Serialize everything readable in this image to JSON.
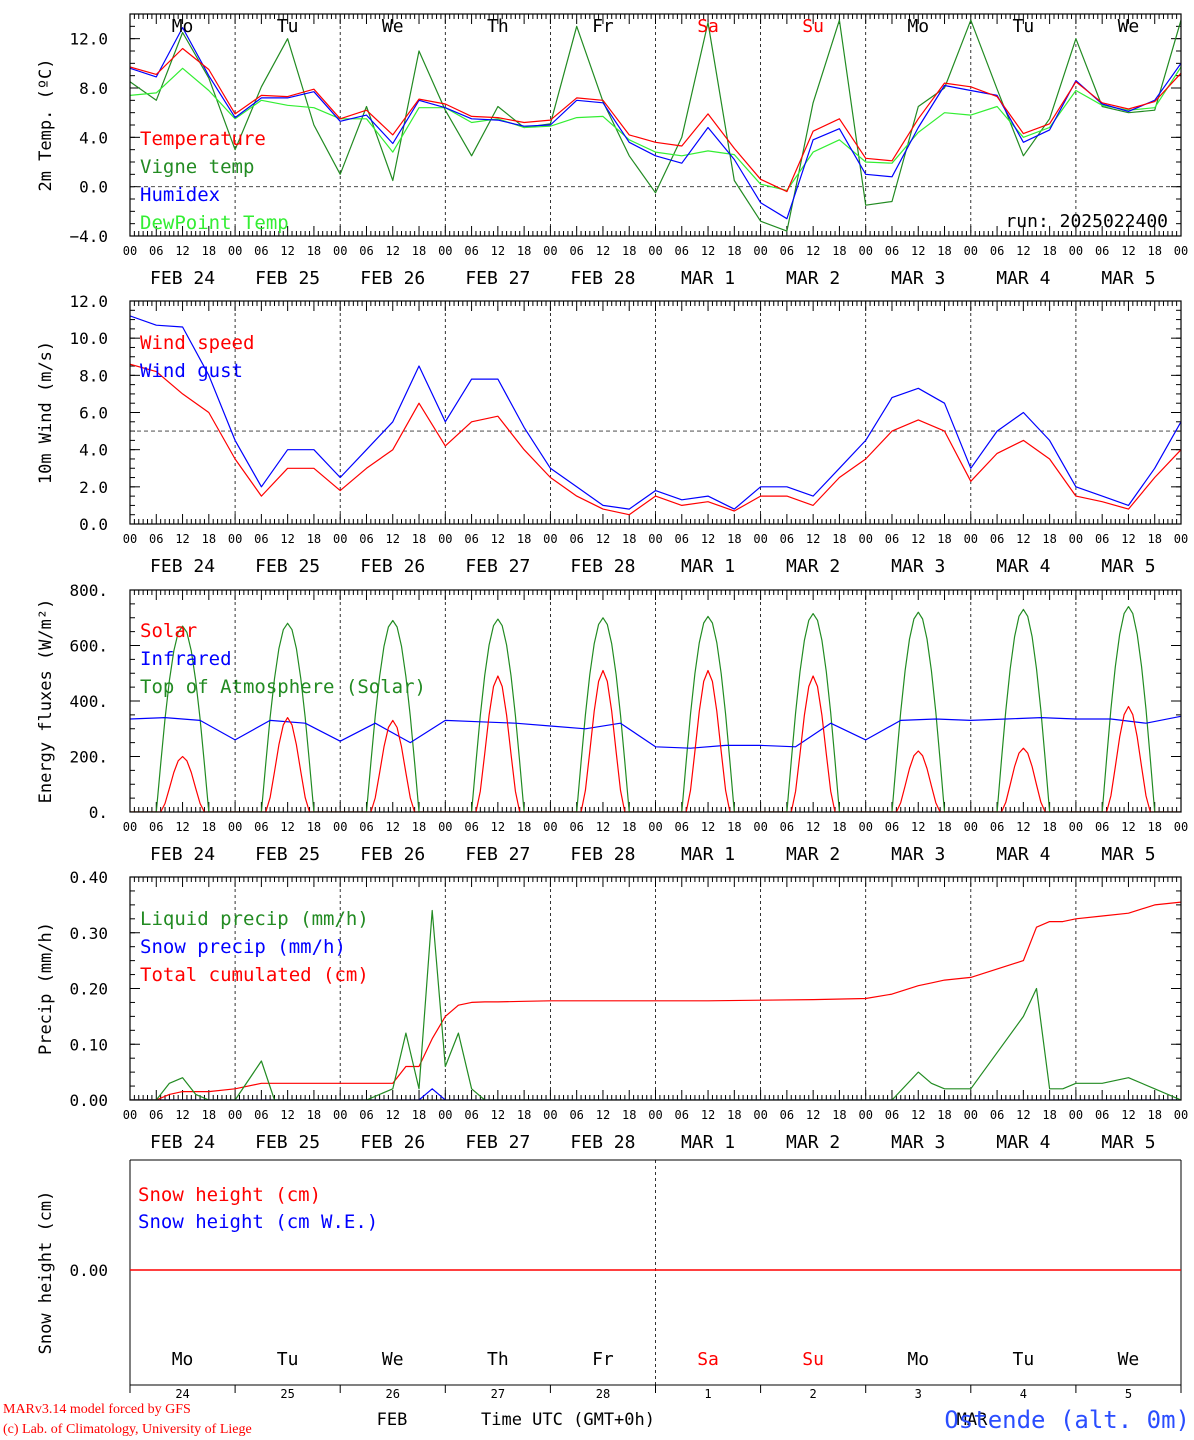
{
  "colors": {
    "red": "#ff0000",
    "dkgreen": "#228b22",
    "blue": "#0000ff",
    "ltgreen": "#33ee33",
    "footer_blue": "#2a4dff"
  },
  "hour_labels": [
    "00",
    "06",
    "12",
    "18"
  ],
  "final_hour_label": "00",
  "date_labels": [
    "FEB 24",
    "FEB 25",
    "FEB 26",
    "FEB 27",
    "FEB 28",
    "MAR  1",
    "MAR  2",
    "MAR  3",
    "MAR  4",
    "MAR  5"
  ],
  "weekdays": [
    {
      "label": "Mo",
      "weekend": false
    },
    {
      "label": "Tu",
      "weekend": false
    },
    {
      "label": "We",
      "weekend": false
    },
    {
      "label": "Th",
      "weekend": false
    },
    {
      "label": "Fr",
      "weekend": false
    },
    {
      "label": "Sa",
      "weekend": true
    },
    {
      "label": "Su",
      "weekend": true
    },
    {
      "label": "Mo",
      "weekend": false
    },
    {
      "label": "Tu",
      "weekend": false
    },
    {
      "label": "We",
      "weekend": false
    }
  ],
  "run_label": "run: 2025022400",
  "footer": {
    "model_line1": "MARv3.14 model forced by GFS",
    "model_line2": "(c) Lab. of Climatology, University of Liege",
    "month_feb": "FEB",
    "month_mar": "MAR",
    "time_axis": "Time UTC (GMT+0h)",
    "station": "Ostende (alt. 0m)",
    "day_numbers": [
      "24",
      "25",
      "26",
      "27",
      "28",
      "1",
      "2",
      "3",
      "4",
      "5"
    ]
  },
  "chart_data": [
    {
      "id": "temp",
      "type": "line",
      "ylabel": "2m Temp. (ºC)",
      "ylim": [
        -4,
        14
      ],
      "yticks": [
        -4,
        0,
        4,
        8,
        12
      ],
      "ytick_labels": [
        "−4.0",
        "0.0",
        "4.0",
        "8.0",
        "12.0"
      ],
      "reference_line": 0,
      "x_hours": [
        0,
        6,
        12,
        18,
        24,
        30,
        36,
        42,
        48,
        54,
        60,
        66,
        72,
        78,
        84,
        90,
        96,
        102,
        108,
        114,
        120,
        126,
        132,
        138,
        144,
        150,
        156,
        162,
        168,
        174,
        180,
        186,
        192,
        198,
        204,
        210,
        216,
        222,
        228,
        234,
        240
      ],
      "series": [
        {
          "name": "Temperature",
          "color": "#ff0000",
          "values": [
            9.7,
            9.1,
            11.2,
            9.5,
            5.9,
            7.4,
            7.3,
            7.9,
            5.5,
            6.2,
            4.2,
            7.1,
            6.7,
            5.7,
            5.6,
            5.2,
            5.4,
            7.2,
            7.0,
            4.2,
            3.6,
            3.3,
            5.9,
            3.1,
            0.6,
            -0.4,
            4.5,
            5.5,
            2.3,
            2.1,
            5.5,
            8.4,
            8.1,
            7.3,
            4.3,
            5.1,
            8.5,
            6.8,
            6.3,
            6.9,
            9.2
          ]
        },
        {
          "name": "Vigne temp",
          "color": "#228b22",
          "values": [
            8.5,
            7.0,
            12.5,
            8.8,
            3.0,
            8.1,
            12.0,
            5.0,
            1.0,
            6.5,
            0.5,
            11.0,
            6.2,
            2.5,
            6.5,
            4.8,
            5.1,
            13.0,
            6.9,
            2.5,
            -0.5,
            4.0,
            13.3,
            0.5,
            -2.8,
            -3.6,
            6.8,
            13.5,
            -1.5,
            -1.2,
            6.5,
            8.0,
            13.5,
            7.9,
            2.5,
            5.5,
            12.0,
            6.5,
            6.0,
            6.2,
            13.5
          ]
        },
        {
          "name": "Humidex",
          "color": "#0000ff",
          "values": [
            9.6,
            8.9,
            12.9,
            9.0,
            5.6,
            7.2,
            7.2,
            7.7,
            5.3,
            5.8,
            3.5,
            7.0,
            6.4,
            5.5,
            5.4,
            4.9,
            5.0,
            7.0,
            6.8,
            3.6,
            2.5,
            1.9,
            4.8,
            2.2,
            -1.3,
            -2.6,
            3.8,
            4.7,
            1.0,
            0.8,
            4.8,
            8.2,
            7.8,
            7.4,
            3.6,
            4.6,
            8.6,
            6.7,
            6.1,
            7.0,
            10.0
          ]
        },
        {
          "name": "DewPoint Temp",
          "color": "#33ee33",
          "values": [
            7.4,
            7.6,
            9.6,
            7.8,
            5.5,
            7.0,
            6.6,
            6.4,
            5.5,
            5.5,
            2.8,
            6.4,
            6.4,
            5.2,
            5.5,
            4.8,
            4.9,
            5.6,
            5.7,
            3.8,
            2.8,
            2.5,
            2.9,
            2.6,
            0.2,
            -0.3,
            2.8,
            3.8,
            2.0,
            1.9,
            4.4,
            6.0,
            5.8,
            6.5,
            4.0,
            4.8,
            7.8,
            6.6,
            6.2,
            6.4,
            9.7
          ]
        }
      ]
    },
    {
      "id": "wind",
      "type": "line",
      "ylabel": "10m Wind (m/s)",
      "ylim": [
        0,
        12
      ],
      "yticks": [
        0,
        2,
        4,
        6,
        8,
        10,
        12
      ],
      "ytick_labels": [
        "0.0",
        "2.0",
        "4.0",
        "6.0",
        "8.0",
        "10.0",
        "12.0"
      ],
      "reference_line": 5,
      "x_hours": [
        0,
        6,
        12,
        18,
        24,
        30,
        36,
        42,
        48,
        54,
        60,
        66,
        72,
        78,
        84,
        90,
        96,
        102,
        108,
        114,
        120,
        126,
        132,
        138,
        144,
        150,
        156,
        162,
        168,
        174,
        180,
        186,
        192,
        198,
        204,
        210,
        216,
        222,
        228,
        234,
        240
      ],
      "series": [
        {
          "name": "Wind speed",
          "color": "#ff0000",
          "values": [
            8.6,
            8.2,
            7.0,
            6.0,
            3.5,
            1.5,
            3.0,
            3.0,
            1.8,
            3.0,
            4.0,
            6.5,
            4.2,
            5.5,
            5.8,
            4.0,
            2.5,
            1.5,
            0.8,
            0.5,
            1.5,
            1.0,
            1.2,
            0.7,
            1.5,
            1.5,
            1.0,
            2.5,
            3.5,
            5.0,
            5.6,
            5.0,
            2.3,
            3.8,
            4.5,
            3.5,
            1.5,
            1.2,
            0.8,
            2.5,
            4.0
          ]
        },
        {
          "name": "Wind gust",
          "color": "#0000ff",
          "values": [
            11.2,
            10.7,
            10.6,
            8.0,
            4.5,
            2.0,
            4.0,
            4.0,
            2.5,
            4.0,
            5.5,
            8.5,
            5.5,
            7.8,
            7.8,
            5.2,
            3.0,
            2.0,
            1.0,
            0.8,
            1.8,
            1.3,
            1.5,
            0.8,
            2.0,
            2.0,
            1.5,
            3.0,
            4.5,
            6.8,
            7.3,
            6.5,
            3.0,
            5.0,
            6.0,
            4.5,
            2.0,
            1.5,
            1.0,
            3.0,
            5.5
          ]
        }
      ]
    },
    {
      "id": "energy",
      "type": "line",
      "ylabel": "Energy fluxes (W/m²)",
      "ylim": [
        0,
        800
      ],
      "yticks": [
        0,
        200,
        400,
        600,
        800
      ],
      "ytick_labels": [
        "0.",
        "200.",
        "400.",
        "600.",
        "800."
      ],
      "series": [
        {
          "name": "Solar",
          "color": "#ff0000",
          "daily_peaks": [
            200,
            340,
            330,
            490,
            510,
            510,
            490,
            220,
            230,
            380
          ]
        },
        {
          "name": "Infrared",
          "color": "#0000ff",
          "values": [
            335,
            340,
            330,
            260,
            330,
            320,
            255,
            320,
            250,
            330,
            325,
            320,
            310,
            300,
            320,
            235,
            230,
            240,
            240,
            235,
            320,
            260,
            330,
            335,
            330,
            335,
            340,
            335,
            335,
            320,
            345
          ]
        },
        {
          "name": "Top of Atmosphere (Solar)",
          "color": "#228b22",
          "daily_peaks": [
            670,
            680,
            690,
            695,
            700,
            705,
            715,
            720,
            730,
            740
          ]
        }
      ]
    },
    {
      "id": "precip",
      "type": "line",
      "ylabel": "Precip (mm/h)",
      "ylim": [
        0,
        0.4
      ],
      "yticks": [
        0,
        0.1,
        0.2,
        0.3,
        0.4
      ],
      "ytick_labels": [
        "0.00",
        "0.10",
        "0.20",
        "0.30",
        "0.40"
      ],
      "x_hours": [
        0,
        6,
        9,
        12,
        15,
        18,
        24,
        30,
        33,
        36,
        42,
        48,
        54,
        60,
        63,
        66,
        69,
        72,
        75,
        78,
        81,
        84,
        90,
        96,
        108,
        120,
        132,
        144,
        156,
        168,
        174,
        180,
        183,
        186,
        192,
        204,
        207,
        210,
        213,
        216,
        222,
        228,
        234,
        240
      ],
      "series": [
        {
          "name": "Liquid precip (mm/h)",
          "color": "#228b22",
          "values": [
            0,
            0,
            0.03,
            0.04,
            0.01,
            0,
            0,
            0.07,
            0,
            0,
            0,
            0,
            0,
            0.02,
            0.12,
            0.02,
            0.34,
            0.06,
            0.12,
            0.02,
            0,
            0,
            0,
            0,
            0,
            0,
            0,
            0,
            0,
            0,
            0,
            0.05,
            0.03,
            0.02,
            0.02,
            0.15,
            0.2,
            0.02,
            0.02,
            0.03,
            0.03,
            0.04,
            0.02,
            0
          ]
        },
        {
          "name": "Snow precip (mm/h)",
          "color": "#0000ff",
          "values": [
            0,
            0,
            0,
            0,
            0,
            0,
            0,
            0,
            0,
            0,
            0,
            0,
            0,
            0,
            0,
            0,
            0.02,
            0,
            0,
            0,
            0,
            0,
            0,
            0,
            0,
            0,
            0,
            0,
            0,
            0,
            0,
            0,
            0,
            0,
            0,
            0,
            0,
            0,
            0,
            0,
            0,
            0,
            0,
            0
          ]
        },
        {
          "name": "Total cumulated (cm)",
          "color": "#ff0000",
          "values": [
            0,
            0,
            0.01,
            0.015,
            0.015,
            0.015,
            0.02,
            0.03,
            0.03,
            0.03,
            0.03,
            0.03,
            0.03,
            0.03,
            0.06,
            0.06,
            0.11,
            0.15,
            0.17,
            0.175,
            0.176,
            0.176,
            0.177,
            0.178,
            0.178,
            0.178,
            0.178,
            0.179,
            0.18,
            0.182,
            0.19,
            0.205,
            0.21,
            0.215,
            0.22,
            0.25,
            0.31,
            0.32,
            0.32,
            0.325,
            0.33,
            0.335,
            0.35,
            0.355
          ]
        }
      ]
    },
    {
      "id": "snow",
      "type": "line",
      "ylabel": "Snow height (cm)",
      "ytick_labels": [
        "0.00"
      ],
      "series": [
        {
          "name": "Snow height (cm)",
          "color": "#ff0000",
          "values": [
            0,
            0
          ]
        },
        {
          "name": "Snow height (cm W.E.)",
          "color": "#0000ff",
          "values": [
            0,
            0
          ]
        }
      ]
    }
  ]
}
